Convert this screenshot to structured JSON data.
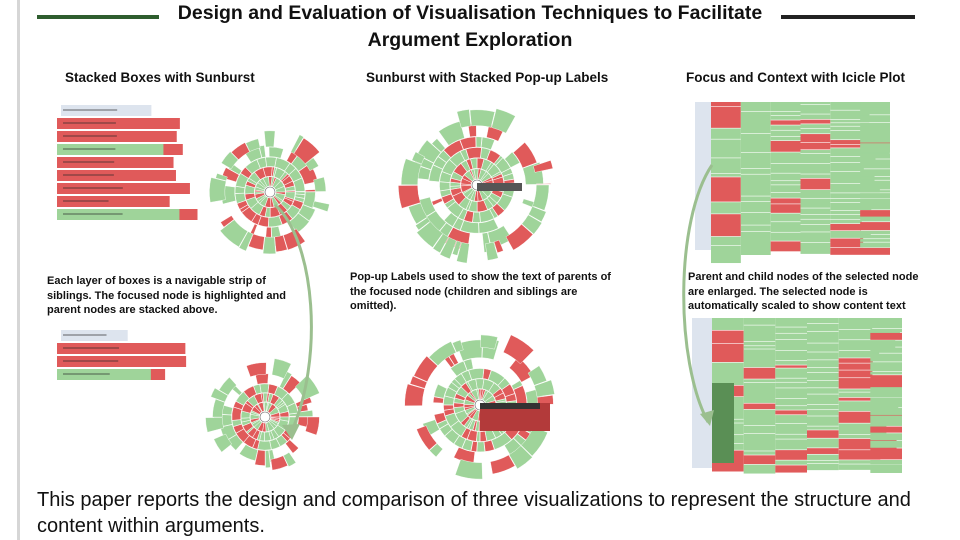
{
  "title": "Design and Evaluation of Visualisation Techniques to Facilitate Argument Exploration",
  "panels": [
    {
      "title": "Stacked Boxes with Sunburst",
      "caption": "Each layer of boxes is a navigable strip of siblings. The focused node is highlighted and parent nodes are stacked above."
    },
    {
      "title": "Sunburst with Stacked Pop-up Labels",
      "caption": "Pop-up Labels used to show the text of parents of the focused node (children and siblings are omitted)."
    },
    {
      "title": "Focus and Context with Icicle Plot",
      "caption": "Parent and child nodes of the selected node are enlarged. The selected node is automatically scaled to show content text"
    }
  ],
  "summary": "This paper reports the design and comparison of three visualizations to represent the structure and content within arguments.",
  "colors": {
    "support": "#9fd49a",
    "attack": "#e05a5a",
    "highlight": "#5a8f55",
    "panel_bg": "#dde4ee"
  }
}
